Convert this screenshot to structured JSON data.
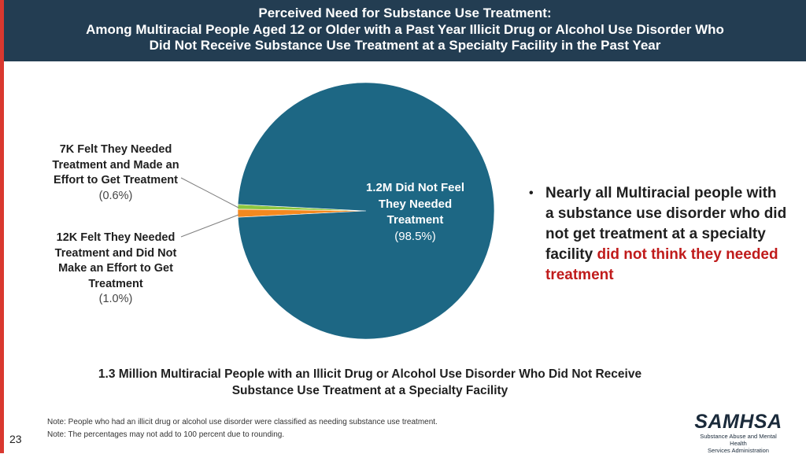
{
  "header": {
    "line1": "Perceived Need for Substance Use Treatment:",
    "line2": "Among Multiracial People Aged 12 or Older with a Past Year Illicit Drug or Alcohol Use Disorder Who",
    "line3": "Did Not Receive Substance Use Treatment at a Specialty Facility in the Past Year"
  },
  "chart_data": {
    "type": "pie",
    "slices": [
      {
        "label_lines": [
          "1.2M Did Not Feel",
          "They Needed",
          "Treatment"
        ],
        "pct_text": "(98.5%)",
        "value": 98.5,
        "color": "#1d6784"
      },
      {
        "label_lines": [
          "7K Felt They Needed",
          "Treatment and Made an",
          "Effort to Get Treatment"
        ],
        "pct_text": "(0.6%)",
        "value": 0.6,
        "color": "#8dc63f"
      },
      {
        "label_lines": [
          "12K Felt They Needed",
          "Treatment and Did Not",
          "Make an Effort to Get",
          "Treatment"
        ],
        "pct_text": "(1.0%)",
        "value": 1.0,
        "color": "#f5891f"
      }
    ],
    "caption_lines": [
      "1.3 Million Multiracial People with an Illicit Drug or Alcohol Use Disorder Who Did Not Receive",
      "Substance Use Treatment at a Specialty Facility"
    ]
  },
  "bullet": {
    "marker": "•",
    "text_plain": "Nearly all Multiracial people with a substance use disorder who did not get treatment at a specialty facility ",
    "text_highlight": "did not think they needed treatment",
    "highlight_color": "#c01b1b"
  },
  "notes": [
    "Note: People who had an illicit drug or alcohol use disorder were classified as needing substance use treatment.",
    "Note: The percentages may not add to 100 percent due to rounding."
  ],
  "page_number": "23",
  "logo": {
    "mark": "SAMHSA",
    "sub_line1": "Substance Abuse and Mental Health",
    "sub_line2": "Services Administration"
  }
}
